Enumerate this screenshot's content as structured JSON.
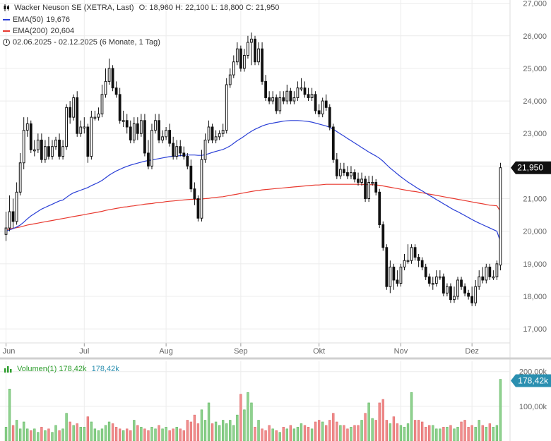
{
  "legend": {
    "title": "Wacker Neuson SE (XETRA, Last)",
    "ohlc": "O: 18,960  H: 22,100  L: 18,800  C: 21,950",
    "ema50_label": "EMA(50)",
    "ema50_value": "19,676",
    "ema200_label": "EMA(200)",
    "ema200_value": "20,604",
    "range_text": "02.06.2025 - 02.12.2025   (6 Monate, 1 Tag)"
  },
  "price_badge": "21,950",
  "volume_badge": "178,42k",
  "volume_legend": {
    "label": "Volumen(1)",
    "value": "178,42k",
    "value2": "178,42k"
  },
  "colors": {
    "ema50": "#2a3fd6",
    "ema200": "#e8392f",
    "candle": "#111111",
    "vol_up": "#8fd18f",
    "vol_down": "#f08c8c",
    "badge_price": "#111111",
    "badge_vol": "#2a8fb0"
  },
  "chart_data": {
    "type": "candlestick",
    "title": "Wacker Neuson SE (XETRA, Last)",
    "y_ticks": [
      17000,
      18000,
      19000,
      20000,
      21000,
      22000,
      23000,
      24000,
      25000,
      26000,
      27000
    ],
    "y_tick_labels": [
      "17,000",
      "18,000",
      "19,000",
      "20,000",
      "21,000",
      "22,000",
      "23,000",
      "24,000",
      "25,000",
      "26,000",
      "27,000"
    ],
    "ylim": [
      16700,
      27100
    ],
    "x_ticks": [
      {
        "label": "Jun",
        "day": 0
      },
      {
        "label": "Jul",
        "day": 22
      },
      {
        "label": "Aug",
        "day": 45
      },
      {
        "label": "Sep",
        "day": 66
      },
      {
        "label": "Okt",
        "day": 88
      },
      {
        "label": "Nov",
        "day": 111
      },
      {
        "label": "Dez",
        "day": 131
      }
    ],
    "close": [
      20100,
      20600,
      20300,
      21200,
      22100,
      23100,
      23300,
      22500,
      22500,
      22800,
      22200,
      22600,
      22300,
      22600,
      22800,
      22300,
      22600,
      23800,
      23500,
      24100,
      23000,
      23200,
      23200,
      22300,
      23500,
      23500,
      23600,
      24200,
      24600,
      25000,
      24400,
      24200,
      23400,
      23400,
      23200,
      22800,
      23300,
      23000,
      23400,
      22400,
      22000,
      23100,
      23400,
      22800,
      22900,
      23100,
      22700,
      22300,
      22600,
      22400,
      22300,
      22000,
      21300,
      21000,
      20400,
      22200,
      22800,
      23200,
      22800,
      22900,
      23000,
      23100,
      24500,
      24800,
      25200,
      25600,
      25000,
      25400,
      25800,
      25900,
      25200,
      25600,
      24600,
      24100,
      24000,
      24100,
      23700,
      24100,
      24000,
      24300,
      24000,
      24100,
      24400,
      24400,
      24200,
      24100,
      24200,
      23700,
      23600,
      24000,
      23800,
      23200,
      22200,
      21700,
      21900,
      21800,
      21700,
      21800,
      21600,
      21500,
      21600,
      21000,
      21500,
      21500,
      21200,
      20200,
      19500,
      18300,
      18900,
      18500,
      18400,
      18900,
      19100,
      19100,
      19500,
      19200,
      19100,
      18900,
      18600,
      18400,
      18400,
      18600,
      18600,
      18100,
      18300,
      17900,
      18000,
      18500,
      18300,
      18100,
      18000,
      17800,
      18300,
      18600,
      18500,
      18900,
      18600,
      18600,
      19000,
      21950
    ],
    "open": [
      19900,
      20100,
      20600,
      20300,
      21200,
      22100,
      23100,
      23300,
      22500,
      22500,
      22800,
      22200,
      22600,
      22300,
      22600,
      22800,
      22300,
      22600,
      23800,
      23500,
      24100,
      23000,
      23200,
      23200,
      22300,
      23500,
      23500,
      23600,
      24200,
      24600,
      25000,
      24400,
      24200,
      23400,
      23400,
      23200,
      22800,
      23300,
      23000,
      23400,
      22400,
      22000,
      23100,
      23400,
      22800,
      22900,
      23100,
      22700,
      22300,
      22600,
      22400,
      22300,
      22000,
      21300,
      21000,
      20400,
      22200,
      22800,
      23200,
      22800,
      22900,
      23000,
      23100,
      24500,
      24800,
      25200,
      25600,
      25000,
      25400,
      25800,
      25900,
      25200,
      25600,
      24600,
      24100,
      24000,
      24100,
      23700,
      24100,
      24000,
      24300,
      24000,
      24100,
      24400,
      24400,
      24200,
      24100,
      24200,
      23700,
      23600,
      24000,
      23800,
      23200,
      22200,
      21700,
      21900,
      21800,
      21700,
      21800,
      21600,
      21500,
      21600,
      21000,
      21500,
      21500,
      21200,
      20200,
      19500,
      18300,
      18900,
      18500,
      18400,
      18900,
      19100,
      19100,
      19500,
      19200,
      19100,
      18900,
      18600,
      18400,
      18400,
      18600,
      18600,
      18100,
      18300,
      17900,
      18000,
      18500,
      18300,
      18100,
      18000,
      17800,
      18300,
      18600,
      18500,
      18900,
      18600,
      18600,
      18960
    ],
    "high": [
      20600,
      21100,
      21000,
      21500,
      22400,
      23500,
      23500,
      23400,
      22800,
      23000,
      23000,
      22800,
      22900,
      22800,
      22900,
      23000,
      22800,
      23900,
      24000,
      24200,
      24300,
      23400,
      23500,
      23300,
      23700,
      23700,
      23800,
      24500,
      25000,
      25300,
      25100,
      24600,
      24400,
      23700,
      23600,
      23400,
      23500,
      23500,
      23600,
      23600,
      22800,
      23300,
      23600,
      23600,
      23100,
      23200,
      23300,
      22900,
      22800,
      22800,
      22600,
      22400,
      22200,
      21500,
      21100,
      22500,
      23000,
      23400,
      23300,
      23100,
      23100,
      23300,
      24700,
      25000,
      25400,
      25800,
      25700,
      25600,
      26000,
      26100,
      26000,
      25800,
      25800,
      24800,
      24300,
      24300,
      24200,
      24300,
      24300,
      24500,
      24400,
      24300,
      24600,
      24700,
      24600,
      24400,
      24400,
      24300,
      23900,
      24100,
      24200,
      23900,
      23300,
      22400,
      22100,
      22100,
      22000,
      22000,
      21900,
      21800,
      21800,
      21700,
      21700,
      21700,
      21600,
      21300,
      20300,
      19600,
      19100,
      19000,
      18800,
      19000,
      19300,
      19600,
      19600,
      19600,
      19300,
      19200,
      19000,
      18700,
      18600,
      18800,
      18800,
      18700,
      18400,
      18400,
      18300,
      18600,
      18600,
      18400,
      18200,
      18300,
      18500,
      18800,
      18900,
      19000,
      19000,
      18800,
      19100,
      22100
    ],
    "low": [
      19700,
      20000,
      20100,
      20200,
      21100,
      21900,
      22900,
      22400,
      22300,
      22400,
      22100,
      22100,
      22200,
      22200,
      22500,
      22200,
      22200,
      22500,
      23300,
      23400,
      22900,
      22900,
      23000,
      22100,
      22200,
      23400,
      23400,
      23500,
      24100,
      24500,
      24300,
      24100,
      23300,
      23200,
      23000,
      22700,
      22700,
      22800,
      22900,
      22300,
      21900,
      21900,
      23000,
      22700,
      22700,
      22800,
      22600,
      22200,
      22200,
      22300,
      22200,
      21900,
      21200,
      20800,
      20300,
      20300,
      22100,
      22700,
      22700,
      22700,
      22800,
      22900,
      23000,
      24400,
      24700,
      25100,
      24900,
      24900,
      25300,
      25100,
      25100,
      25100,
      24500,
      24000,
      23900,
      23900,
      23600,
      23600,
      23900,
      23900,
      23900,
      23900,
      24000,
      24300,
      24100,
      24000,
      24000,
      23600,
      23500,
      23500,
      23700,
      23100,
      22100,
      21600,
      21600,
      21700,
      21600,
      21600,
      21500,
      21400,
      21400,
      20900,
      20900,
      21400,
      21100,
      20100,
      19400,
      18200,
      18100,
      18200,
      18300,
      18300,
      18800,
      19000,
      19000,
      19100,
      18900,
      18800,
      18500,
      18300,
      18200,
      18300,
      18500,
      18000,
      18000,
      17800,
      17800,
      17900,
      18200,
      18000,
      17900,
      17700,
      17700,
      18200,
      18400,
      18400,
      18500,
      18500,
      18500,
      18800
    ],
    "ema50": [
      20000,
      20040,
      20080,
      20130,
      20190,
      20280,
      20380,
      20470,
      20540,
      20610,
      20680,
      20730,
      20780,
      20830,
      20880,
      20930,
      20960,
      21040,
      21120,
      21180,
      21220,
      21260,
      21300,
      21340,
      21400,
      21450,
      21500,
      21560,
      21640,
      21720,
      21790,
      21850,
      21900,
      21950,
      21990,
      22030,
      22060,
      22090,
      22120,
      22150,
      22170,
      22190,
      22210,
      22230,
      22250,
      22270,
      22290,
      22300,
      22310,
      22320,
      22330,
      22340,
      22340,
      22340,
      22330,
      22330,
      22350,
      22380,
      22420,
      22450,
      22480,
      22510,
      22560,
      22620,
      22700,
      22780,
      22850,
      22920,
      23000,
      23070,
      23130,
      23180,
      23230,
      23270,
      23300,
      23320,
      23340,
      23360,
      23380,
      23390,
      23400,
      23400,
      23400,
      23390,
      23380,
      23370,
      23350,
      23320,
      23290,
      23260,
      23230,
      23190,
      23130,
      23060,
      22990,
      22920,
      22850,
      22780,
      22710,
      22640,
      22570,
      22500,
      22430,
      22370,
      22310,
      22240,
      22150,
      22040,
      21940,
      21850,
      21760,
      21670,
      21590,
      21510,
      21440,
      21370,
      21300,
      21240,
      21170,
      21100,
      21040,
      20970,
      20910,
      20840,
      20780,
      20710,
      20650,
      20600,
      20540,
      20480,
      20420,
      20360,
      20300,
      20250,
      20200,
      20150,
      20100,
      20050,
      20000,
      19676
    ],
    "ema200": [
      20050,
      20070,
      20090,
      20110,
      20130,
      20160,
      20190,
      20210,
      20230,
      20250,
      20270,
      20290,
      20310,
      20330,
      20350,
      20370,
      20390,
      20410,
      20430,
      20450,
      20470,
      20490,
      20510,
      20530,
      20550,
      20570,
      20590,
      20610,
      20640,
      20660,
      20680,
      20700,
      20720,
      20740,
      20750,
      20770,
      20780,
      20800,
      20810,
      20830,
      20840,
      20850,
      20870,
      20880,
      20890,
      20910,
      20920,
      20930,
      20940,
      20950,
      20960,
      20970,
      20980,
      20980,
      20980,
      20990,
      21000,
      21010,
      21030,
      21040,
      21050,
      21060,
      21080,
      21100,
      21120,
      21140,
      21160,
      21180,
      21200,
      21220,
      21240,
      21250,
      21270,
      21280,
      21290,
      21300,
      21310,
      21320,
      21330,
      21340,
      21350,
      21360,
      21370,
      21380,
      21390,
      21400,
      21410,
      21420,
      21420,
      21430,
      21440,
      21440,
      21440,
      21440,
      21440,
      21440,
      21440,
      21440,
      21440,
      21440,
      21440,
      21430,
      21430,
      21430,
      21420,
      21410,
      21390,
      21370,
      21350,
      21330,
      21310,
      21290,
      21270,
      21250,
      21230,
      21220,
      21200,
      21180,
      21160,
      21140,
      21120,
      21100,
      21080,
      21060,
      21040,
      21020,
      21000,
      20980,
      20960,
      20940,
      20920,
      20900,
      20880,
      20860,
      20840,
      20820,
      20800,
      20790,
      20780,
      20604
    ],
    "volume": [
      40,
      150,
      45,
      60,
      35,
      55,
      35,
      30,
      35,
      25,
      40,
      30,
      35,
      25,
      45,
      30,
      35,
      80,
      55,
      45,
      50,
      40,
      40,
      70,
      55,
      35,
      30,
      35,
      45,
      55,
      50,
      40,
      35,
      30,
      35,
      30,
      60,
      45,
      40,
      35,
      30,
      40,
      35,
      45,
      35,
      40,
      30,
      35,
      40,
      35,
      30,
      60,
      55,
      75,
      50,
      90,
      60,
      110,
      50,
      55,
      45,
      60,
      50,
      60,
      45,
      75,
      135,
      90,
      140,
      110,
      40,
      60,
      35,
      30,
      45,
      35,
      30,
      25,
      40,
      35,
      45,
      35,
      40,
      50,
      45,
      40,
      35,
      55,
      60,
      55,
      45,
      60,
      80,
      55,
      45,
      45,
      35,
      40,
      45,
      45,
      60,
      80,
      110,
      65,
      60,
      110,
      120,
      60,
      50,
      70,
      50,
      45,
      40,
      50,
      140,
      60,
      60,
      55,
      40,
      45,
      45,
      35,
      35,
      40,
      40,
      45,
      35,
      40,
      55,
      60,
      40,
      45,
      40,
      60,
      45,
      40,
      50,
      40,
      45,
      178
    ]
  }
}
